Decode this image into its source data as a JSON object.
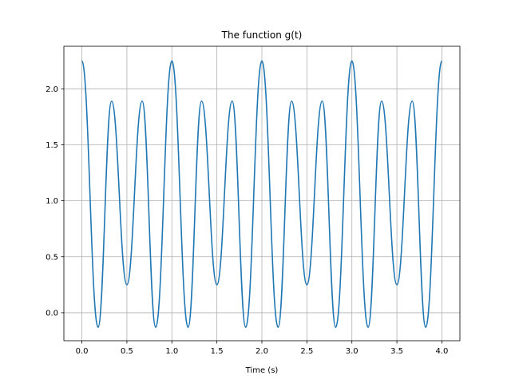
{
  "chart_data": {
    "type": "line",
    "title": "The function g(t)",
    "xlabel": "Time (s)",
    "ylabel": "",
    "xlim": [
      -0.2,
      4.2
    ],
    "ylim": [
      -0.25,
      2.38
    ],
    "grid": true,
    "x_ticks": [
      0.0,
      0.5,
      1.0,
      1.5,
      2.0,
      2.5,
      3.0,
      3.5,
      4.0
    ],
    "x_tick_labels": [
      "0.0",
      "0.5",
      "1.0",
      "1.5",
      "2.0",
      "2.5",
      "3.0",
      "3.5",
      "4.0"
    ],
    "y_ticks": [
      0.0,
      0.5,
      1.0,
      1.5,
      2.0
    ],
    "y_tick_labels": [
      "0.0",
      "0.5",
      "1.0",
      "1.5",
      "2.0"
    ],
    "series": [
      {
        "color": "#1f77b4",
        "x_range": [
          0.0,
          4.0
        ],
        "key_points": [
          {
            "x": 0.0,
            "y": 2.25
          },
          {
            "x": 0.18,
            "y": -0.13
          },
          {
            "x": 0.33,
            "y": 1.89
          },
          {
            "x": 0.5,
            "y": 0.25
          },
          {
            "x": 0.67,
            "y": 1.89
          },
          {
            "x": 0.82,
            "y": -0.13
          },
          {
            "x": 1.0,
            "y": 2.25
          },
          {
            "x": 1.18,
            "y": -0.13
          },
          {
            "x": 1.33,
            "y": 1.89
          },
          {
            "x": 1.5,
            "y": 0.25
          },
          {
            "x": 1.67,
            "y": 1.89
          },
          {
            "x": 1.82,
            "y": -0.13
          },
          {
            "x": 2.0,
            "y": 2.25
          },
          {
            "x": 2.18,
            "y": -0.13
          },
          {
            "x": 2.33,
            "y": 1.89
          },
          {
            "x": 2.5,
            "y": 0.25
          },
          {
            "x": 2.67,
            "y": 1.89
          },
          {
            "x": 2.82,
            "y": -0.13
          },
          {
            "x": 3.0,
            "y": 2.25
          },
          {
            "x": 3.18,
            "y": -0.13
          },
          {
            "x": 3.33,
            "y": 1.89
          },
          {
            "x": 3.5,
            "y": 0.25
          },
          {
            "x": 3.67,
            "y": 1.89
          },
          {
            "x": 3.82,
            "y": -0.13
          },
          {
            "x": 4.0,
            "y": 2.25
          }
        ]
      }
    ]
  }
}
